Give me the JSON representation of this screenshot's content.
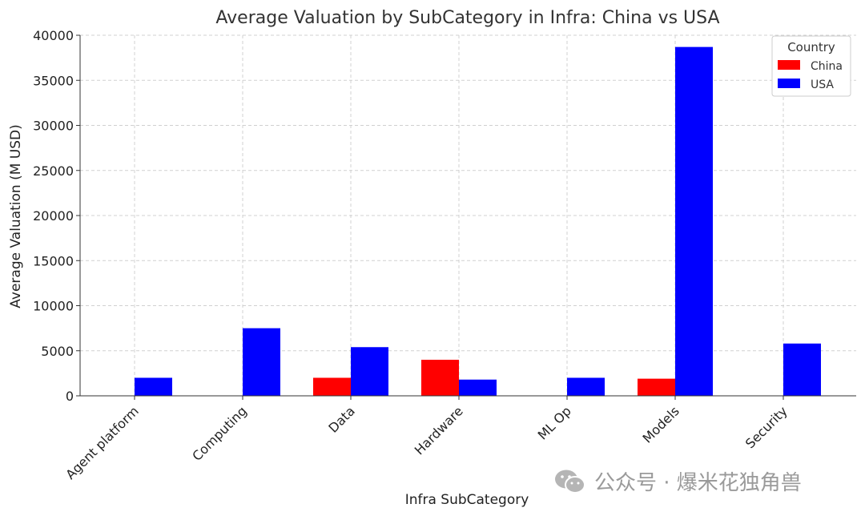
{
  "chart_data": {
    "type": "bar",
    "title": "Average Valuation by SubCategory in Infra: China vs USA",
    "xlabel": "Infra SubCategory",
    "ylabel": "Average Valuation (M USD)",
    "ylim": [
      0,
      40000
    ],
    "yticks": [
      0,
      5000,
      10000,
      15000,
      20000,
      25000,
      30000,
      35000,
      40000
    ],
    "grid": true,
    "legend": {
      "title": "Country",
      "position": "top-right"
    },
    "categories": [
      "Agent platform",
      "Computing",
      "Data",
      "Hardware",
      "ML Op",
      "Models",
      "Security"
    ],
    "series": [
      {
        "name": "China",
        "color": "#ff0000",
        "values": [
          null,
          null,
          2000,
          4000,
          null,
          1900,
          null
        ]
      },
      {
        "name": "USA",
        "color": "#0000ff",
        "values": [
          2000,
          7500,
          5400,
          1800,
          2000,
          38700,
          5800
        ]
      }
    ]
  },
  "watermark": {
    "text": "公众号 · 爆米花独角兽",
    "icon": "wechat-icon"
  }
}
